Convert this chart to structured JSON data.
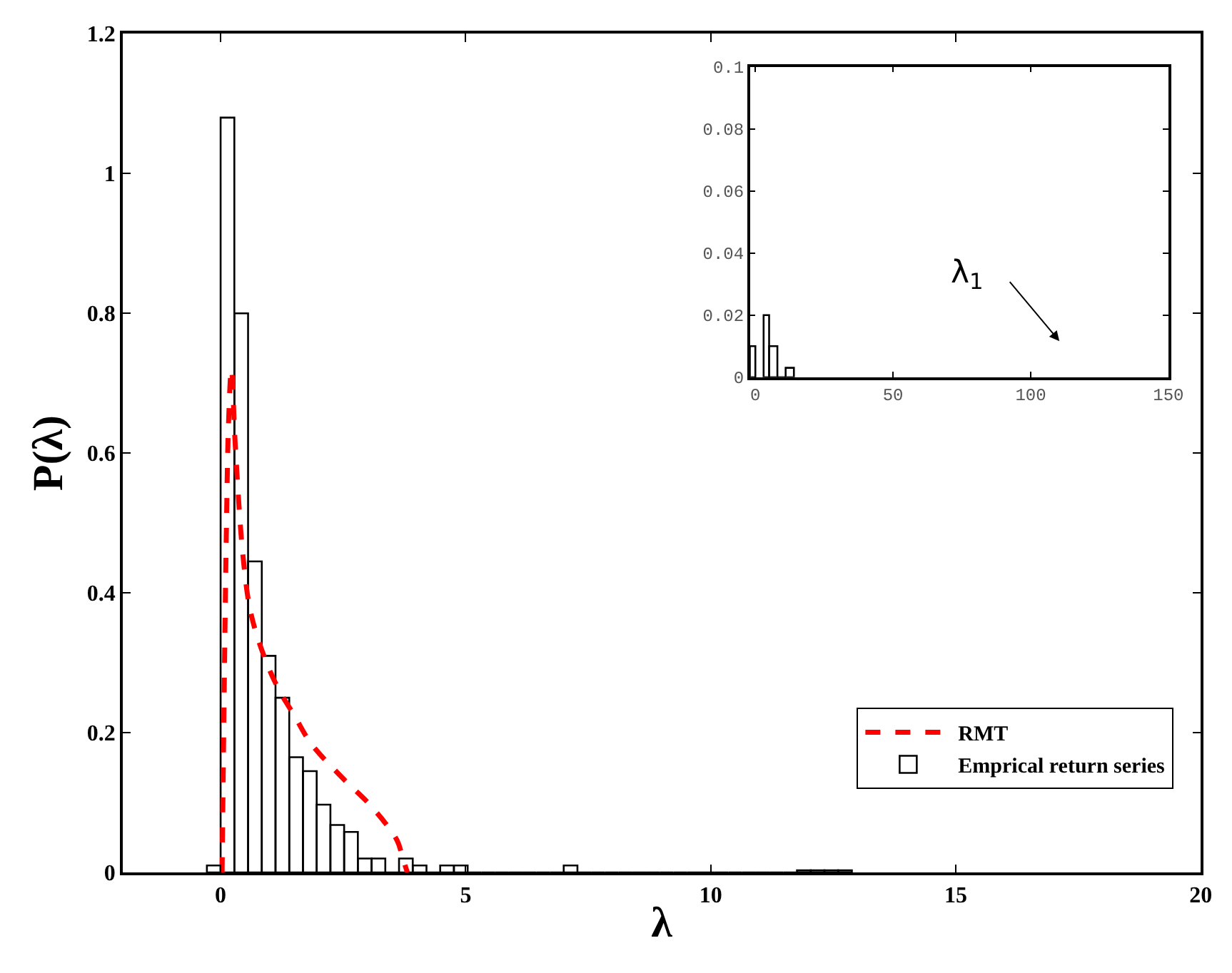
{
  "chart_data": [
    {
      "type": "histogram",
      "xlabel": "λ",
      "ylabel": "P(λ)",
      "xlim": [
        -2,
        20
      ],
      "xticks": [
        0,
        5,
        10,
        15,
        20
      ],
      "ylim": [
        0,
        1.2
      ],
      "yticks": [
        0,
        0.2,
        0.4,
        0.6,
        0.8,
        1,
        1.2
      ],
      "legend": "bottom right",
      "bins": [
        -0.28,
        0,
        0.28,
        0.56,
        0.84,
        1.12,
        1.4,
        1.68,
        1.96,
        2.24,
        2.52,
        2.8,
        3.08,
        3.36,
        3.64,
        3.92,
        4.2,
        4.48,
        4.76,
        5.04,
        5.32,
        5.6,
        5.88,
        6.16,
        6.44,
        6.72,
        7.0,
        7.28,
        7.56,
        7.84,
        8.12,
        8.4,
        8.68,
        8.96,
        9.24,
        9.52,
        9.8,
        10.08,
        10.36,
        10.64,
        10.92,
        11.2,
        11.48,
        11.76,
        12.04,
        12.32,
        12.6,
        12.88
      ],
      "series": [
        {
          "name": "RMT",
          "type": "line",
          "color": "#ff0000",
          "line_style": "dashed",
          "x": [
            0.03,
            0.08,
            0.12,
            0.16,
            0.22,
            0.3,
            0.46,
            0.62,
            0.91,
            1.2,
            1.5,
            1.85,
            2.49,
            3.07,
            3.6,
            3.71,
            3.81
          ],
          "values": [
            0,
            0.3,
            0.5,
            0.64,
            0.72,
            0.61,
            0.45,
            0.37,
            0.305,
            0.26,
            0.225,
            0.184,
            0.135,
            0.095,
            0.046,
            0.022,
            0
          ]
        },
        {
          "name": "Emprical return series",
          "color": "#000000",
          "values": [
            0.01,
            1.08,
            0.8,
            0.445,
            0.31,
            0.25,
            0.165,
            0.145,
            0.097,
            0.068,
            0.058,
            0.02,
            0.02,
            0,
            0.02,
            0.01,
            0,
            0.01,
            0.01,
            0,
            0,
            0,
            0,
            0,
            0,
            0,
            0.01,
            0,
            0,
            0,
            0,
            0,
            0,
            0,
            0,
            0,
            0,
            0,
            0,
            0,
            0,
            0,
            0,
            0.003,
            0.003,
            0.003,
            0.003
          ]
        }
      ]
    },
    {
      "type": "histogram",
      "xlim": [
        -2,
        150
      ],
      "xticks": [
        0,
        50,
        100,
        150
      ],
      "ylim": [
        0,
        0.1
      ],
      "yticks": [
        0,
        0.02,
        0.04,
        0.06,
        0.08,
        {
          "value": 0.1,
          "label": "0.1"
        }
      ],
      "annotations": [
        "λ$_{1}$"
      ],
      "bins": [
        -2,
        0,
        3,
        5,
        8,
        11,
        14
      ],
      "series": [
        {
          "color": "#000000",
          "values": [
            0.01,
            null,
            0.02,
            0.01,
            0,
            0.003
          ]
        }
      ]
    }
  ]
}
